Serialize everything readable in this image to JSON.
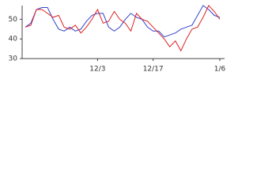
{
  "chart_data": {
    "type": "line",
    "categories": [
      null,
      null,
      null,
      null,
      null,
      null,
      null,
      null,
      null,
      null,
      null,
      null,
      null,
      "12/3",
      null,
      null,
      null,
      null,
      null,
      null,
      null,
      null,
      null,
      "12/17",
      null,
      null,
      null,
      null,
      null,
      null,
      null,
      null,
      null,
      null,
      null,
      "1/6"
    ],
    "series": [
      {
        "name": "blue",
        "color": "#3344cc",
        "values": [
          46,
          48,
          55,
          56,
          56,
          50,
          45,
          44,
          46,
          44,
          45,
          49,
          52,
          53,
          53,
          46,
          44,
          46,
          50,
          53,
          51,
          50,
          46,
          44,
          44,
          41,
          42,
          43,
          45,
          46,
          47,
          52,
          57,
          55,
          52,
          51
        ]
      },
      {
        "name": "red",
        "color": "#dd2222",
        "values": [
          46,
          47,
          55,
          55,
          53,
          51,
          52,
          46,
          45,
          47,
          43,
          46,
          50,
          55,
          48,
          49,
          54,
          50,
          48,
          44,
          53,
          50,
          49,
          46,
          43,
          40,
          36,
          39,
          34,
          40,
          45,
          46,
          51,
          57,
          54,
          50
        ]
      }
    ],
    "ylim": [
      30,
      57
    ],
    "yticks": [
      30,
      40,
      50
    ]
  }
}
